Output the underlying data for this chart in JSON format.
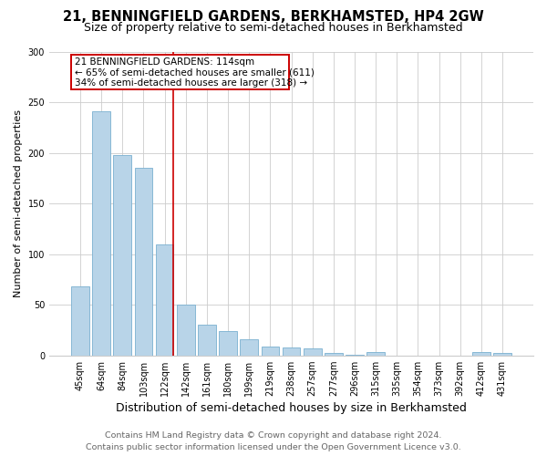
{
  "title": "21, BENNINGFIELD GARDENS, BERKHAMSTED, HP4 2GW",
  "subtitle": "Size of property relative to semi-detached houses in Berkhamsted",
  "xlabel": "Distribution of semi-detached houses by size in Berkhamsted",
  "ylabel": "Number of semi-detached properties",
  "categories": [
    "45sqm",
    "64sqm",
    "84sqm",
    "103sqm",
    "122sqm",
    "142sqm",
    "161sqm",
    "180sqm",
    "199sqm",
    "219sqm",
    "238sqm",
    "257sqm",
    "277sqm",
    "296sqm",
    "315sqm",
    "335sqm",
    "354sqm",
    "373sqm",
    "392sqm",
    "412sqm",
    "431sqm"
  ],
  "values": [
    68,
    241,
    198,
    185,
    110,
    50,
    30,
    24,
    16,
    9,
    8,
    7,
    2,
    1,
    3,
    0,
    0,
    0,
    0,
    3,
    2
  ],
  "bar_color": "#b8d4e8",
  "bar_edge_color": "#7ab0d0",
  "vline_color": "#cc0000",
  "highlight_index": 4,
  "annotation_title": "21 BENNINGFIELD GARDENS: 114sqm",
  "annotation_line2": "← 65% of semi-detached houses are smaller (611)",
  "annotation_line3": "34% of semi-detached houses are larger (318) →",
  "annotation_box_edgecolor": "#cc0000",
  "annotation_box_facecolor": "#ffffff",
  "footer_line1": "Contains HM Land Registry data © Crown copyright and database right 2024.",
  "footer_line2": "Contains public sector information licensed under the Open Government Licence v3.0.",
  "ylim": [
    0,
    300
  ],
  "yticks": [
    0,
    50,
    100,
    150,
    200,
    250,
    300
  ],
  "title_fontsize": 10.5,
  "subtitle_fontsize": 9,
  "ylabel_fontsize": 8,
  "xlabel_fontsize": 9,
  "tick_fontsize": 7,
  "annotation_fontsize": 7.5,
  "footer_fontsize": 6.8,
  "background_color": "#ffffff",
  "grid_color": "#cccccc"
}
